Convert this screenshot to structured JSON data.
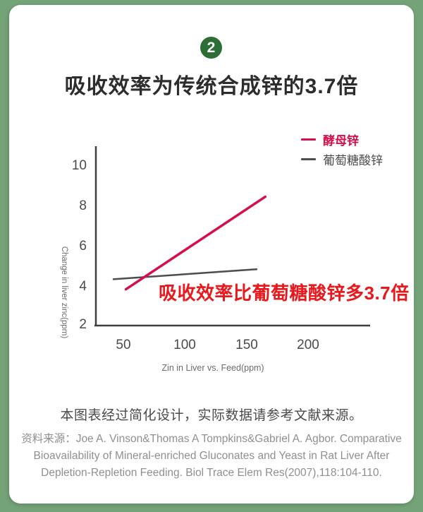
{
  "badge": {
    "number": "2"
  },
  "heading": "吸收效率为传统合成锌的3.7倍",
  "chart_data": {
    "type": "line",
    "title": "",
    "xlabel": "Zin in Liver vs. Feed(ppm)",
    "ylabel": "Change in liver zinc(ppm)",
    "x_ticks": [
      50,
      100,
      150,
      200
    ],
    "y_ticks": [
      2,
      4,
      6,
      8,
      10
    ],
    "xlim": [
      30,
      250
    ],
    "ylim": [
      2,
      11.5
    ],
    "grid": false,
    "legend_position": "top-right",
    "series": [
      {
        "name": "酵母锌",
        "color": "#d4104b",
        "stroke_width": 3.5,
        "points": [
          [
            52,
            3.8
          ],
          [
            165,
            8.4
          ]
        ]
      },
      {
        "name": "葡萄糖酸锌",
        "color": "#4d4d4d",
        "stroke_width": 2.5,
        "points": [
          [
            42,
            4.3
          ],
          [
            158,
            4.8
          ]
        ]
      }
    ],
    "annotation": {
      "text": "吸收效率比葡萄糖酸锌多3.7倍",
      "color": "#e8181c"
    }
  },
  "note": "本图表经过简化设计，实际数据请参考文献来源。",
  "source": {
    "lines": [
      "资料来源：Joe A. Vinson&Thomas A Tompkins&Gabriel A. Agbor. Comparative",
      "Bioavailability of Mineral-enriched Gluconates and Yeast in Rat Liver After",
      "Depletion-Repletion Feeding. Biol Trace Elem Res(2007),118:104-110."
    ]
  },
  "colors": {
    "background": "#74a378",
    "badge_green": "#2c6e35",
    "accent_red": "#d4104b",
    "annotation_red": "#e8181c"
  }
}
